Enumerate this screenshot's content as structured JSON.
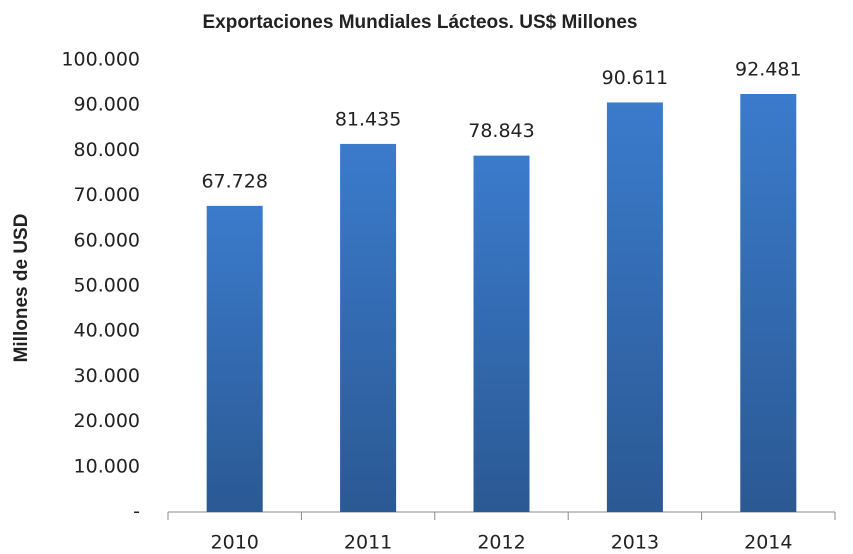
{
  "chart_data": {
    "type": "bar",
    "title": "Exportaciones Mundiales Lácteos. US$ Millones",
    "y_label": "Millones de USD",
    "categories": [
      "2010",
      "2011",
      "2012",
      "2013",
      "2014"
    ],
    "values": [
      67728,
      81435,
      78843,
      90611,
      92481
    ],
    "value_labels": [
      "67.728",
      "81.435",
      "78.843",
      "90.611",
      "92.481"
    ],
    "color": "#3b7bcc",
    "ylim": [
      0,
      100000
    ],
    "yticks": [
      {
        "value": 0,
        "label": "-"
      },
      {
        "value": 10000,
        "label": "10.000"
      },
      {
        "value": 20000,
        "label": "20.000"
      },
      {
        "value": 30000,
        "label": "30.000"
      },
      {
        "value": 40000,
        "label": "40.000"
      },
      {
        "value": 50000,
        "label": "50.000"
      },
      {
        "value": 60000,
        "label": "60.000"
      },
      {
        "value": 70000,
        "label": "70.000"
      },
      {
        "value": 80000,
        "label": "80.000"
      },
      {
        "value": 90000,
        "label": "90.000"
      },
      {
        "value": 100000,
        "label": "100.000"
      }
    ],
    "grid": false
  }
}
